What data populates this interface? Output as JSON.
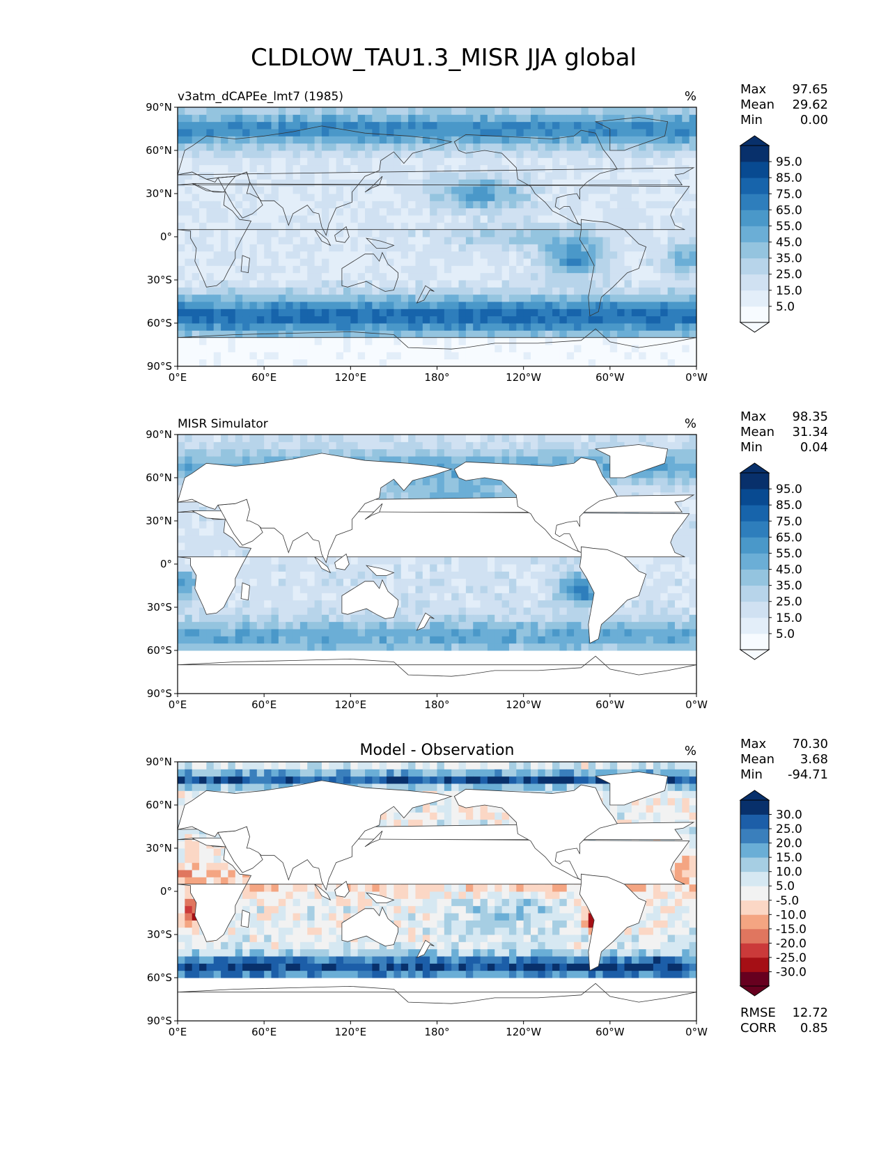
{
  "figure": {
    "title": "CLDLOW_TAU1.3_MISR JJA global"
  },
  "palettes": {
    "blues": [
      "#f7fbff",
      "#e3eef9",
      "#d0e1f2",
      "#b7d4ea",
      "#94c4df",
      "#6baed6",
      "#4a98c9",
      "#2e7ebc",
      "#1764ab",
      "#084a91",
      "#08306b"
    ],
    "rdbu": [
      "#67001f",
      "#a50f15",
      "#cb3a3a",
      "#e0765f",
      "#f4a582",
      "#fbd7c5",
      "#f2f2f2",
      "#d6e8f2",
      "#a6cee3",
      "#6aaed6",
      "#3a7fbc",
      "#1c5ea8",
      "#08306b"
    ]
  },
  "chart_data": [
    {
      "type": "heatmap",
      "panel_title": "v3atm_dCAPEe_lmt7 (1985)",
      "units": "%",
      "colormap": "blues",
      "stats": [
        {
          "label": "Max",
          "value": "97.65"
        },
        {
          "label": "Mean",
          "value": "29.62"
        },
        {
          "label": "Min",
          "value": "0.00"
        }
      ],
      "colorbar_ticks": [
        "95.0",
        "85.0",
        "75.0",
        "65.0",
        "55.0",
        "45.0",
        "35.0",
        "25.0",
        "15.0",
        "5.0"
      ],
      "colorbar_range": [
        0,
        100
      ],
      "xticks": [
        "0°E",
        "60°E",
        "120°E",
        "180°",
        "120°W",
        "60°W",
        "0°W"
      ],
      "yticks": [
        "90°N",
        "60°N",
        "30°N",
        "0°",
        "30°S",
        "60°S",
        "90°S"
      ],
      "xlim": [
        0,
        360
      ],
      "ylim": [
        -90,
        90
      ]
    },
    {
      "type": "heatmap",
      "panel_title": "MISR Simulator",
      "units": "%",
      "colormap": "blues",
      "stats": [
        {
          "label": "Max",
          "value": "98.35"
        },
        {
          "label": "Mean",
          "value": "31.34"
        },
        {
          "label": "Min",
          "value": "0.04"
        }
      ],
      "colorbar_ticks": [
        "95.0",
        "85.0",
        "75.0",
        "65.0",
        "55.0",
        "45.0",
        "35.0",
        "25.0",
        "15.0",
        "5.0"
      ],
      "colorbar_range": [
        0,
        100
      ],
      "xticks": [
        "0°E",
        "60°E",
        "120°E",
        "180°",
        "120°W",
        "60°W",
        "0°W"
      ],
      "yticks": [
        "90°N",
        "60°N",
        "30°N",
        "0°",
        "30°S",
        "60°S",
        "90°S"
      ],
      "xlim": [
        0,
        360
      ],
      "ylim": [
        -90,
        90
      ]
    },
    {
      "type": "heatmap",
      "panel_title": "Model - Observation",
      "units": "%",
      "colormap": "rdbu",
      "stats": [
        {
          "label": "Max",
          "value": "70.30"
        },
        {
          "label": "Mean",
          "value": "3.68"
        },
        {
          "label": "Min",
          "value": "-94.71"
        }
      ],
      "metrics": [
        {
          "label": "RMSE",
          "value": "12.72"
        },
        {
          "label": "CORR",
          "value": "0.85"
        }
      ],
      "colorbar_ticks": [
        "30.0",
        "25.0",
        "20.0",
        "15.0",
        "10.0",
        "5.0",
        "-5.0",
        "-10.0",
        "-15.0",
        "-20.0",
        "-25.0",
        "-30.0"
      ],
      "colorbar_range": [
        -35,
        35
      ],
      "xticks": [
        "0°E",
        "60°E",
        "120°E",
        "180°",
        "120°W",
        "60°W",
        "0°W"
      ],
      "yticks": [
        "90°N",
        "60°N",
        "30°N",
        "0°",
        "30°S",
        "60°S",
        "90°S"
      ],
      "xlim": [
        0,
        360
      ],
      "ylim": [
        -90,
        90
      ]
    }
  ]
}
